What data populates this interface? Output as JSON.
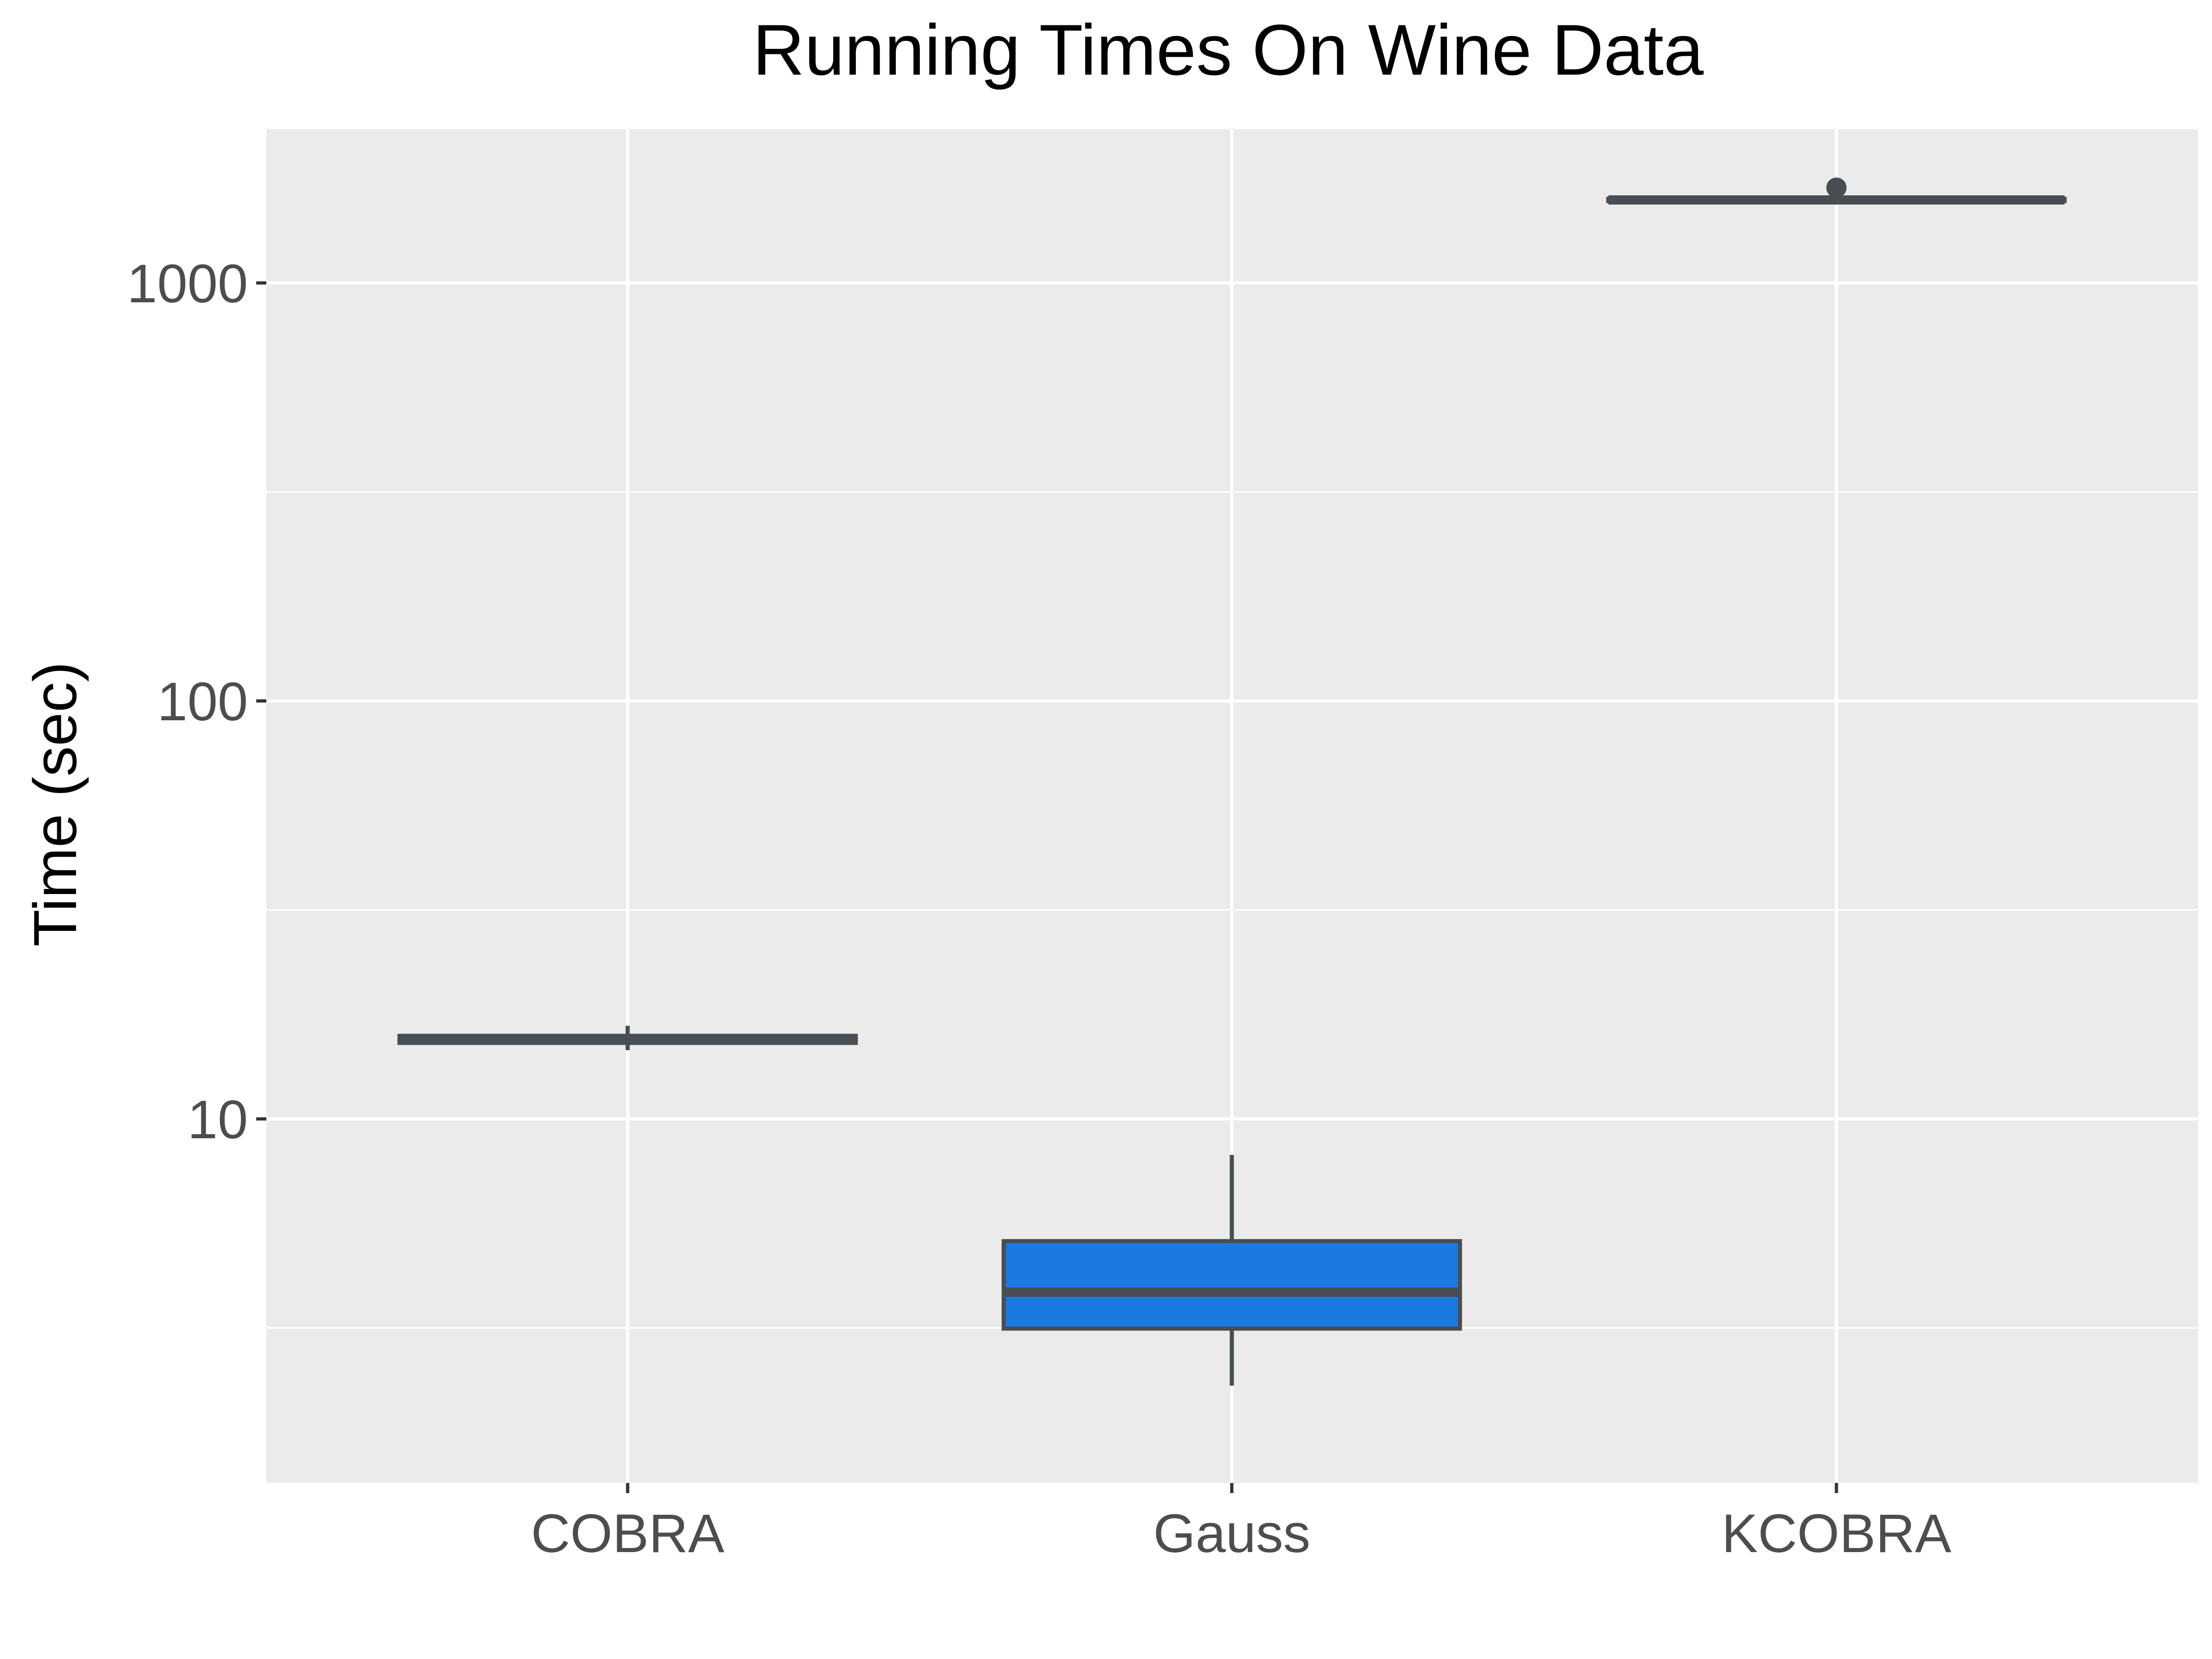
{
  "chart_data": {
    "type": "boxplot",
    "title": "Running Times On Wine Data",
    "xlabel": "",
    "ylabel": "Time (sec)",
    "y_scale": "log10",
    "ylim": [
      1.9,
      2200
    ],
    "y_ticks": [
      10,
      100,
      1000
    ],
    "y_tick_labels": [
      "10",
      "100",
      "1000"
    ],
    "categories": [
      "COBRA",
      "Gauss",
      "KCOBRA"
    ],
    "boxes": [
      {
        "category": "COBRA",
        "whisker_low": 14.6,
        "q1": 15.2,
        "median": 15.5,
        "q3": 15.8,
        "whisker_high": 16.7,
        "outliers": [],
        "fill": "#4a4f53"
      },
      {
        "category": "Gauss",
        "whisker_low": 2.3,
        "q1": 3.15,
        "median": 3.85,
        "q3": 5.1,
        "whisker_high": 8.2,
        "outliers": [],
        "fill": "#1b7ae0"
      },
      {
        "category": "KCOBRA",
        "whisker_low": 1555,
        "q1": 1570,
        "median": 1580,
        "q3": 1590,
        "whisker_high": 1600,
        "outliers": [
          1690
        ],
        "fill": "#4a4f53"
      }
    ],
    "grid": true,
    "legend": "none",
    "colors": {
      "panel_background": "#ebebeb",
      "grid_line": "#ffffff",
      "box_outline": "#484e53",
      "tick_label": "#4d4d4d",
      "tick_mark": "#333333"
    }
  }
}
